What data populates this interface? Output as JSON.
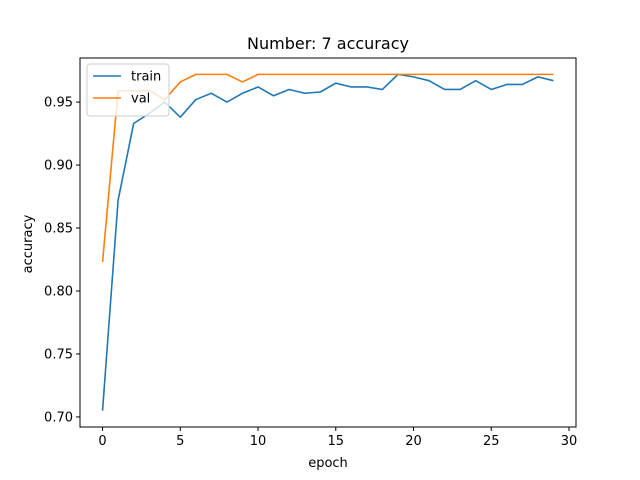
{
  "chart_data": {
    "type": "line",
    "title": "Number: 7 accuracy",
    "xlabel": "epoch",
    "ylabel": "accuracy",
    "xlim": [
      -1.45,
      30.45
    ],
    "ylim": [
      0.692,
      0.985
    ],
    "xticks": [
      0,
      5,
      10,
      15,
      20,
      25,
      30
    ],
    "xtick_labels": [
      "0",
      "5",
      "10",
      "15",
      "20",
      "25",
      "30"
    ],
    "yticks": [
      0.7,
      0.75,
      0.8,
      0.85,
      0.9,
      0.95
    ],
    "ytick_labels": [
      "0.70",
      "0.75",
      "0.80",
      "0.85",
      "0.90",
      "0.95"
    ],
    "grid": false,
    "legend_placement": "upper left",
    "x": [
      0,
      1,
      2,
      3,
      4,
      5,
      6,
      7,
      8,
      9,
      10,
      11,
      12,
      13,
      14,
      15,
      16,
      17,
      18,
      19,
      20,
      21,
      22,
      23,
      24,
      25,
      26,
      27,
      28,
      29
    ],
    "series": [
      {
        "name": "train",
        "color": "#1f77b4",
        "values": [
          0.705,
          0.872,
          0.933,
          0.941,
          0.95,
          0.938,
          0.952,
          0.957,
          0.95,
          0.957,
          0.962,
          0.955,
          0.96,
          0.957,
          0.958,
          0.965,
          0.962,
          0.962,
          0.96,
          0.972,
          0.97,
          0.967,
          0.96,
          0.96,
          0.967,
          0.96,
          0.964,
          0.964,
          0.97,
          0.967
        ]
      },
      {
        "name": "val",
        "color": "#ff7f0e",
        "values": [
          0.823,
          0.959,
          0.959,
          0.959,
          0.952,
          0.966,
          0.972,
          0.972,
          0.972,
          0.966,
          0.972,
          0.972,
          0.972,
          0.972,
          0.972,
          0.972,
          0.972,
          0.972,
          0.972,
          0.972,
          0.972,
          0.972,
          0.972,
          0.972,
          0.972,
          0.972,
          0.972,
          0.972,
          0.972,
          0.972
        ]
      }
    ]
  }
}
